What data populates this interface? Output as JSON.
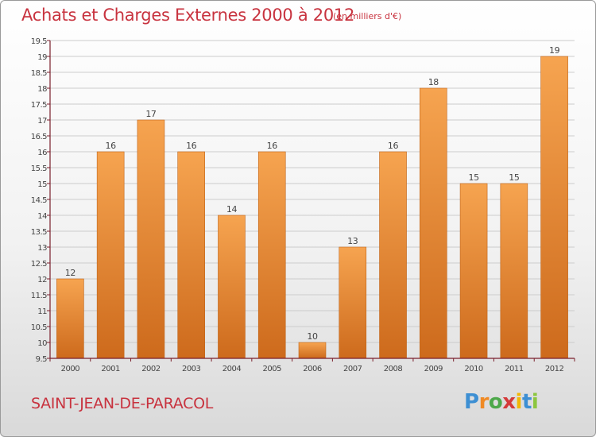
{
  "header": {
    "title": "Achats et Charges Externes 2000 à 2012",
    "unit": "(en milliers d'€)"
  },
  "footer": {
    "commune": "SAINT-JEAN-DE-PARACOL",
    "logo": [
      "P",
      "r",
      "o",
      "x",
      "i",
      "t",
      "i"
    ],
    "logo_colors": [
      "#3d8fd3",
      "#f08a24",
      "#4da84a",
      "#d43a3a",
      "#f2b705",
      "#3d8fd3",
      "#8cc63f"
    ]
  },
  "colors": {
    "bar_top": "#f6a450",
    "bar_bottom": "#cd6a1c",
    "axis": "#7a1f2c",
    "grid": "#cccccc"
  },
  "chart_data": {
    "type": "bar",
    "title": "Achats et Charges Externes 2000 à 2012",
    "subtitle": "(en milliers d'€)",
    "xlabel": "",
    "ylabel": "",
    "categories": [
      "2000",
      "2001",
      "2002",
      "2003",
      "2004",
      "2005",
      "2006",
      "2007",
      "2008",
      "2009",
      "2010",
      "2011",
      "2012"
    ],
    "values": [
      12,
      16,
      17,
      16,
      14,
      16,
      10,
      13,
      16,
      18,
      15,
      15,
      19
    ],
    "value_labels": [
      "12",
      "16",
      "17",
      "16",
      "14",
      "16",
      "10",
      "13",
      "16",
      "18",
      "15",
      "15",
      "19"
    ],
    "ylim": [
      9.5,
      19.5
    ],
    "yticks": [
      "9.5",
      "10",
      "10.5",
      "11",
      "11.5",
      "12",
      "12.5",
      "13",
      "13.5",
      "14",
      "14.5",
      "15",
      "15.5",
      "16",
      "16.5",
      "17",
      "17.5",
      "18",
      "18.5",
      "19",
      "19.5"
    ],
    "grid": true
  }
}
